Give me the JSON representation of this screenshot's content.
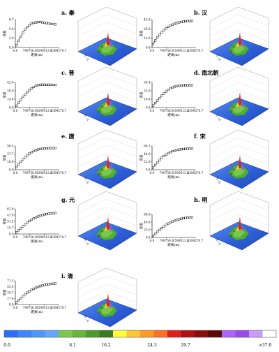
{
  "colorbar": {
    "colors": [
      "#2a6cff",
      "#3d84ff",
      "#4f96ff",
      "#64a6ff",
      "#7ac84e",
      "#6bb43a",
      "#4f9a2c",
      "#3a7a22",
      "#ffff3a",
      "#ffc830",
      "#ff9a24",
      "#ff7020",
      "#e02018",
      "#b01010",
      "#8a0c0c",
      "#5a0808",
      "#b060ff",
      "#9a48f0",
      "#c89cff",
      "#ffffff"
    ],
    "tick_labels": [
      "0.0",
      "8.1",
      "16.2",
      "24.3",
      "29.7",
      ">37.8"
    ]
  },
  "chart_data": [
    {
      "id": "a",
      "type": "scatter",
      "title": "a. 秦",
      "xlabel": "距离(m)",
      "ylabel": "变差",
      "x_ticks": [
        "0.0",
        "799756.9",
        "1599513.8",
        "2399270.7"
      ],
      "y_ticks": [
        "0.0",
        "2.9",
        "5.8",
        "8.7"
      ],
      "xlim": [
        0,
        2399270.7
      ],
      "ylim": [
        0,
        8.7
      ],
      "x": [
        60000,
        180000,
        300000,
        420000,
        540000,
        660000,
        780000,
        900000,
        1020000,
        1140000,
        1260000,
        1380000,
        1500000,
        1620000,
        1740000,
        1860000,
        1980000,
        2100000,
        2220000
      ],
      "y": [
        0.7,
        2.1,
        3.4,
        4.6,
        5.6,
        6.4,
        7.0,
        7.5,
        7.7,
        7.8,
        7.9,
        7.95,
        7.8,
        7.7,
        7.6,
        7.5,
        7.3,
        7.3,
        7.2
      ],
      "surface_axis_labels": [
        "N—S",
        "W—E"
      ]
    },
    {
      "id": "b",
      "type": "scatter",
      "title": "b. 汉",
      "xlabel": "距离(m)",
      "ylabel": "变差",
      "x_ticks": [
        "0.0",
        "799756.9",
        "1599513.8",
        "2399270.7"
      ],
      "y_ticks": [
        "0.0",
        "14.6",
        "29.2",
        "43.9"
      ],
      "xlim": [
        0,
        2399270.7
      ],
      "ylim": [
        0,
        43.9
      ],
      "x": [
        60000,
        180000,
        300000,
        420000,
        540000,
        660000,
        780000,
        900000,
        1020000,
        1140000,
        1260000,
        1380000,
        1500000,
        1620000,
        1740000,
        1860000,
        1980000,
        2100000,
        2220000
      ],
      "y": [
        5,
        11,
        16,
        20,
        24,
        27,
        30,
        32.5,
        34.5,
        36,
        37.5,
        38.5,
        39.5,
        40.2,
        40.8,
        41.2,
        41.5,
        41.5,
        41.6
      ],
      "surface_axis_labels": [
        "N—S",
        "W—E"
      ]
    },
    {
      "id": "c",
      "type": "scatter",
      "title": "c. 晋",
      "xlabel": "距离(m)",
      "ylabel": "变差",
      "x_ticks": [
        "0.0",
        "799756.9",
        "1599513.8",
        "2399270.7"
      ],
      "y_ticks": [
        "0.0",
        "14.0",
        "28.0",
        "42.0"
      ],
      "xlim": [
        0,
        2399270.7
      ],
      "ylim": [
        0,
        42
      ],
      "x": [
        60000,
        180000,
        300000,
        420000,
        540000,
        660000,
        780000,
        900000,
        1020000,
        1140000,
        1260000,
        1380000,
        1500000,
        1620000,
        1740000,
        1860000,
        1980000,
        2100000,
        2220000
      ],
      "y": [
        3,
        8,
        13,
        18,
        22,
        26,
        29.5,
        32,
        34.5,
        36.5,
        37.5,
        38,
        38.2,
        38.1,
        38,
        38.1,
        38,
        37.9,
        37.8
      ],
      "surface_axis_labels": [
        "N—S",
        "W—E"
      ]
    },
    {
      "id": "d",
      "type": "scatter",
      "title": "d. 南北朝",
      "xlabel": "距离(m)",
      "ylabel": "变差",
      "x_ticks": [
        "0.0",
        "799756.9",
        "1599513.8",
        "2399270.7"
      ],
      "y_ticks": [
        "0.0",
        "16.8",
        "33.6",
        "50.4"
      ],
      "xlim": [
        0,
        2399270.7
      ],
      "ylim": [
        0,
        50.4
      ],
      "x": [
        60000,
        180000,
        300000,
        420000,
        540000,
        660000,
        780000,
        900000,
        1020000,
        1140000,
        1260000,
        1380000,
        1500000,
        1620000,
        1740000,
        1860000,
        1980000,
        2100000,
        2220000
      ],
      "y": [
        4,
        9,
        14,
        19,
        24,
        28,
        32,
        35.5,
        38.5,
        40.5,
        42,
        43,
        43.8,
        44.2,
        44.5,
        44.6,
        44.7,
        44.8,
        44.8
      ],
      "surface_axis_labels": [
        "N—S",
        "W—E"
      ]
    },
    {
      "id": "e",
      "type": "scatter",
      "title": "e. 唐",
      "xlabel": "距离(m)",
      "ylabel": "变差",
      "x_ticks": [
        "0.0",
        "799756.9",
        "1599513.8",
        "2399270.7"
      ],
      "y_ticks": [
        "0.0",
        "18.8",
        "37.7",
        "56.5"
      ],
      "xlim": [
        0,
        2399270.7
      ],
      "ylim": [
        0,
        56.5
      ],
      "x": [
        60000,
        180000,
        300000,
        420000,
        540000,
        660000,
        780000,
        900000,
        1020000,
        1140000,
        1260000,
        1380000,
        1500000,
        1620000,
        1740000,
        1860000,
        1980000,
        2100000,
        2220000
      ],
      "y": [
        6,
        13,
        19,
        25,
        30,
        34.5,
        38.5,
        42,
        44.5,
        46.5,
        48,
        49.2,
        50,
        50.5,
        50.8,
        51,
        51.2,
        51.2,
        51.2
      ],
      "surface_axis_labels": [
        "N—S",
        "W—E"
      ]
    },
    {
      "id": "f",
      "type": "scatter",
      "title": "f. 宋",
      "xlabel": "距离(m)",
      "ylabel": "变差",
      "x_ticks": [
        "0.0",
        "799756.9",
        "1599513.8",
        "2399270.7"
      ],
      "y_ticks": [
        "0.0",
        "22.0",
        "44.0",
        "66.1"
      ],
      "xlim": [
        0,
        2399270.7
      ],
      "ylim": [
        0,
        66.1
      ],
      "x": [
        60000,
        180000,
        300000,
        420000,
        540000,
        660000,
        780000,
        900000,
        1020000,
        1140000,
        1260000,
        1380000,
        1500000,
        1620000,
        1740000,
        1860000,
        1980000,
        2100000,
        2220000
      ],
      "y": [
        6,
        13,
        20,
        27,
        33,
        38,
        42,
        46,
        49,
        51.5,
        53.5,
        55,
        56,
        57,
        57.5,
        58,
        58.5,
        58.6,
        58.8
      ],
      "surface_axis_labels": [
        "N—S",
        "W—E"
      ]
    },
    {
      "id": "g",
      "type": "scatter",
      "title": "g. 元",
      "xlabel": "距离(m)",
      "ylabel": "变差",
      "x_ticks": [
        "0.0",
        "799756.9",
        "1599513.8",
        "2399270.7"
      ],
      "y_ticks": [
        "0.0",
        "15.7",
        "31.3",
        "47.0",
        "62.6"
      ],
      "xlim": [
        0,
        2399270.7
      ],
      "ylim": [
        0,
        62.6
      ],
      "x": [
        60000,
        180000,
        300000,
        420000,
        540000,
        660000,
        780000,
        900000,
        1020000,
        1140000,
        1260000,
        1380000,
        1500000,
        1620000,
        1740000,
        1860000,
        1980000,
        2100000,
        2220000
      ],
      "y": [
        4,
        9,
        14,
        19,
        24,
        28.5,
        32.5,
        36,
        39,
        41.5,
        43.5,
        45.5,
        47,
        48.5,
        49.5,
        50.5,
        51,
        51.5,
        52
      ],
      "surface_axis_labels": [
        "N—S",
        "W—E"
      ]
    },
    {
      "id": "h",
      "type": "scatter",
      "title": "h. 明",
      "xlabel": "距离(m)",
      "ylabel": "变差",
      "x_ticks": [
        "0.0",
        "799756.9",
        "1599513.8",
        "2399270.7"
      ],
      "y_ticks": [
        "0.0",
        "23.0",
        "46.0",
        "69.0"
      ],
      "xlim": [
        0,
        2399270.7
      ],
      "ylim": [
        0,
        69
      ],
      "x": [
        60000,
        180000,
        300000,
        420000,
        540000,
        660000,
        780000,
        900000,
        1020000,
        1140000,
        1260000,
        1380000,
        1500000,
        1620000,
        1740000,
        1860000,
        1980000,
        2100000,
        2220000
      ],
      "y": [
        5,
        11,
        17,
        22.5,
        28,
        33,
        37.5,
        41.5,
        45,
        48,
        50.5,
        52.5,
        54.5,
        56,
        57.5,
        58.5,
        59.5,
        60,
        60.5
      ],
      "surface_axis_labels": [
        "N—S",
        "W—E"
      ]
    },
    {
      "id": "i",
      "type": "scatter",
      "title": "i. 清",
      "xlabel": "距离(m)",
      "ylabel": "变差",
      "x_ticks": [
        "0.0",
        "799756.9",
        "1599513.8",
        "2399270.7"
      ],
      "y_ticks": [
        "0.0",
        "17.8",
        "35.7",
        "53.5",
        "71.3"
      ],
      "xlim": [
        0,
        2399270.7
      ],
      "ylim": [
        0,
        71.3
      ],
      "x": [
        60000,
        180000,
        300000,
        420000,
        540000,
        660000,
        780000,
        900000,
        1020000,
        1140000,
        1260000,
        1380000,
        1500000,
        1620000,
        1740000,
        1860000,
        1980000,
        2100000,
        2220000
      ],
      "y": [
        6,
        13,
        19,
        25,
        30.5,
        35.5,
        40,
        44,
        47.5,
        50.5,
        53,
        55,
        57,
        58.5,
        60,
        61,
        62,
        62.5,
        63
      ],
      "surface_axis_labels": [
        "N—S",
        "W—E"
      ]
    }
  ]
}
